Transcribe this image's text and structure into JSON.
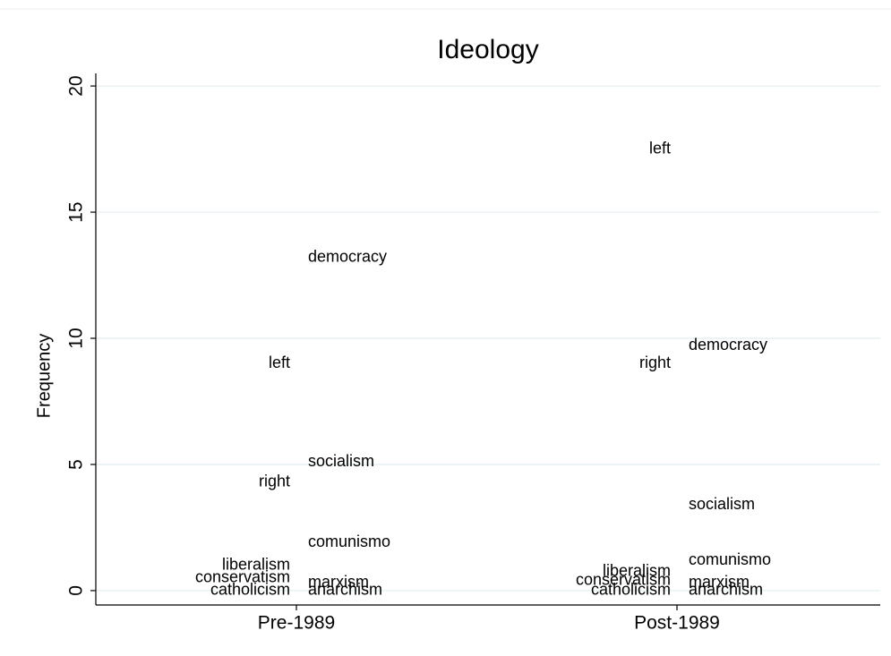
{
  "chart_data": {
    "type": "label-dotplot",
    "title": "Ideology",
    "y_label": "Frequency",
    "categories": [
      "Pre-1989",
      "Post-1989"
    ],
    "groups": [
      {
        "columns": [
          {
            "labels": [
              "left",
              "right",
              "liberalism",
              "conservatism",
              "catholicism"
            ],
            "values": [
              9.0,
              4.3,
              1.0,
              0.5,
              0
            ]
          },
          {
            "labels": [
              "democracy",
              "socialism",
              "comunismo",
              "marxism",
              "anarchism"
            ],
            "values": [
              13.2,
              5.1,
              1.9,
              0.3,
              0
            ]
          }
        ]
      },
      {
        "columns": [
          {
            "labels": [
              "left",
              "right",
              "liberalism",
              "conservatism",
              "catholicism"
            ],
            "values": [
              17.5,
              9.0,
              0.75,
              0.4,
              0
            ]
          },
          {
            "labels": [
              "democracy",
              "socialism",
              "comunismo",
              "marxism",
              "anarchism"
            ],
            "values": [
              9.7,
              3.4,
              1.2,
              0.3,
              0
            ]
          }
        ]
      }
    ],
    "ylim": [
      -0.57,
      20.5
    ],
    "yticks": [
      0,
      5,
      10,
      15,
      20
    ],
    "grid": true
  }
}
